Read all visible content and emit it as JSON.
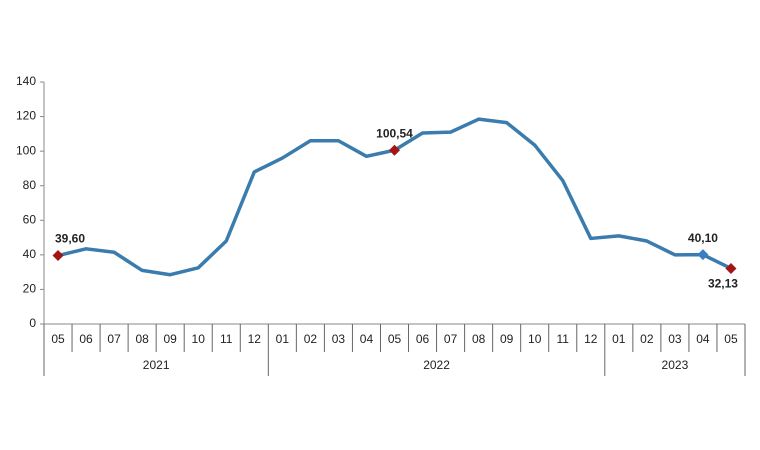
{
  "chart_data": {
    "type": "line",
    "groups": [
      {
        "label": "2021",
        "categories": [
          "05",
          "06",
          "07",
          "08",
          "09",
          "10",
          "11",
          "12"
        ]
      },
      {
        "label": "2022",
        "categories": [
          "01",
          "02",
          "03",
          "04",
          "05",
          "06",
          "07",
          "08",
          "09",
          "10",
          "11",
          "12"
        ]
      },
      {
        "label": "2023",
        "categories": [
          "01",
          "02",
          "03",
          "04",
          "05"
        ]
      }
    ],
    "series": [
      {
        "color": "#3a7cad",
        "values": [
          39.6,
          43.5,
          41.5,
          31,
          28.5,
          32.5,
          48,
          88,
          96,
          106,
          106,
          97,
          100.54,
          110.5,
          111,
          118.5,
          116.5,
          103.5,
          83,
          49.5,
          51,
          48,
          40,
          40.1,
          32.13
        ],
        "value_labels": [
          "39,60",
          null,
          null,
          null,
          null,
          null,
          null,
          null,
          null,
          null,
          null,
          null,
          "100,54",
          null,
          null,
          null,
          null,
          null,
          null,
          null,
          null,
          null,
          null,
          "40,10",
          "32,13"
        ],
        "marker_colors": [
          "#a31515",
          null,
          null,
          null,
          null,
          null,
          null,
          null,
          null,
          null,
          null,
          null,
          "#a31515",
          null,
          null,
          null,
          null,
          null,
          null,
          null,
          null,
          null,
          null,
          "#3a7fc1",
          "#a31515"
        ]
      }
    ],
    "ylim": [
      0,
      140
    ],
    "yticks": [
      0,
      20,
      40,
      60,
      80,
      100,
      120,
      140
    ],
    "grid": false
  }
}
